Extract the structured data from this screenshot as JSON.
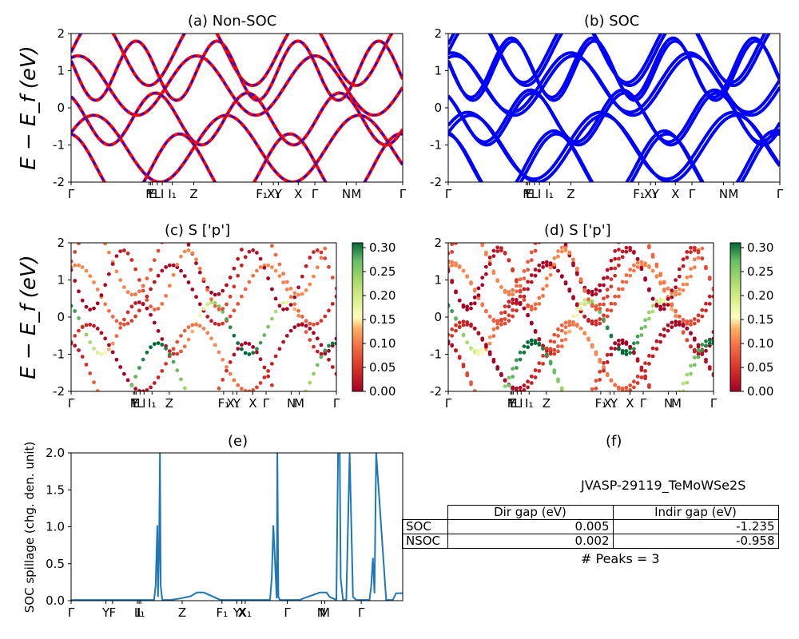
{
  "chart_data": [
    {
      "panel": "a",
      "type": "line",
      "title": "(a) Non-SOC",
      "ylabel": "E − E_f (eV)",
      "ylim": [
        -2,
        2
      ],
      "yticks": [
        "-2",
        "-1",
        "0",
        "1",
        "2"
      ],
      "xtick_labels": [
        "Γ",
        "F",
        "Y",
        "E",
        "L",
        "I",
        "I₁",
        "Z",
        "F₁",
        "X₁",
        "Y",
        "X",
        "Γ",
        "N",
        "M",
        "Γ"
      ],
      "series": [
        {
          "color": "red"
        },
        {
          "color": "blue",
          "style": "dashed"
        }
      ]
    },
    {
      "panel": "b",
      "type": "line",
      "title": "(b) SOC",
      "ylim": [
        -2,
        2
      ],
      "yticks": [
        "-2",
        "-1",
        "0",
        "1",
        "2"
      ],
      "xtick_labels": [
        "Γ",
        "F",
        "Y",
        "E",
        "L",
        "I",
        "I₁",
        "Z",
        "F₁",
        "X₁",
        "Y",
        "X",
        "Γ",
        "N",
        "M",
        "Γ"
      ],
      "series": [
        {
          "color": "blue"
        }
      ]
    },
    {
      "panel": "c",
      "type": "scatter",
      "title": "(c)  S ['p']",
      "ylabel": "E − E_f (eV)",
      "ylim": [
        -2,
        2
      ],
      "yticks": [
        "-2",
        "-1",
        "0",
        "1",
        "2"
      ],
      "colorbar": {
        "min": 0.0,
        "max": 0.31,
        "ticks": [
          "0.00",
          "0.05",
          "0.10",
          "0.15",
          "0.20",
          "0.25",
          "0.30"
        ],
        "colormap": "RdYlGn"
      }
    },
    {
      "panel": "d",
      "type": "scatter",
      "title": "(d) S ['p']",
      "ylim": [
        -2,
        2
      ],
      "yticks": [
        "-2",
        "-1",
        "0",
        "1",
        "2"
      ],
      "colorbar": {
        "min": 0.0,
        "max": 0.31,
        "ticks": [
          "0.00",
          "0.05",
          "0.10",
          "0.15",
          "0.20",
          "0.25",
          "0.30"
        ],
        "colormap": "RdYlGn"
      }
    },
    {
      "panel": "e",
      "type": "line",
      "title": "(e)",
      "ylabel": "SOC spillage (chg. den. unit)",
      "ylim": [
        0,
        2
      ],
      "yticks": [
        "0.0",
        "0.5",
        "1.0",
        "1.5",
        "2.0"
      ],
      "xtick_labels": [
        "Γ",
        "Y",
        "F",
        "L",
        "I",
        "I₁",
        "Z",
        "F₁",
        "Y",
        "X",
        "X₁",
        "Γ",
        "N",
        "M",
        "Γ"
      ],
      "x": [
        0,
        0.05,
        0.1,
        0.15,
        0.2,
        0.25,
        0.255,
        0.26,
        0.262,
        0.265,
        0.268,
        0.27,
        0.275,
        0.28,
        0.3,
        0.33,
        0.36,
        0.38,
        0.4,
        0.45,
        0.5,
        0.55,
        0.6,
        0.6,
        0.605,
        0.61,
        0.62,
        0.622,
        0.625,
        0.63,
        0.66,
        0.69,
        0.7,
        0.75,
        0.76,
        0.77,
        0.78,
        0.8,
        0.805,
        0.81,
        0.813,
        0.82,
        0.83,
        0.84,
        0.85,
        0.86,
        0.9,
        0.905,
        0.91,
        0.915,
        0.92,
        0.95,
        0.97,
        0.98,
        1.0
      ],
      "y": [
        0.01,
        0.01,
        0.01,
        0.01,
        0.01,
        0.01,
        0.2,
        1.02,
        0.05,
        0.6,
        2.0,
        0.2,
        0.01,
        0.01,
        0.01,
        0.03,
        0.06,
        0.11,
        0.11,
        0.01,
        0.01,
        0.01,
        0.01,
        0.02,
        0.3,
        1.02,
        0.03,
        2.0,
        0.05,
        0.01,
        0.01,
        0.01,
        0.03,
        0.11,
        0.11,
        0.11,
        0.05,
        0.01,
        2.0,
        2.0,
        0.3,
        0.01,
        0.01,
        2.0,
        0.05,
        0.01,
        0.01,
        0.2,
        0.58,
        0.1,
        2.0,
        0.01,
        0.01,
        0.1,
        0.1
      ]
    }
  ],
  "info": {
    "title": "(f)",
    "material": "JVASP-29119_TeMoWSe2S",
    "table_headers": [
      "Dir gap (eV)",
      "Indir gap (eV)"
    ],
    "rows": [
      {
        "label": "SOC",
        "dir": "0.005",
        "indir": "-1.235"
      },
      {
        "label": "NSOC",
        "dir": "0.002",
        "indir": "-0.958"
      }
    ],
    "peaks": "# Peaks = 3"
  }
}
